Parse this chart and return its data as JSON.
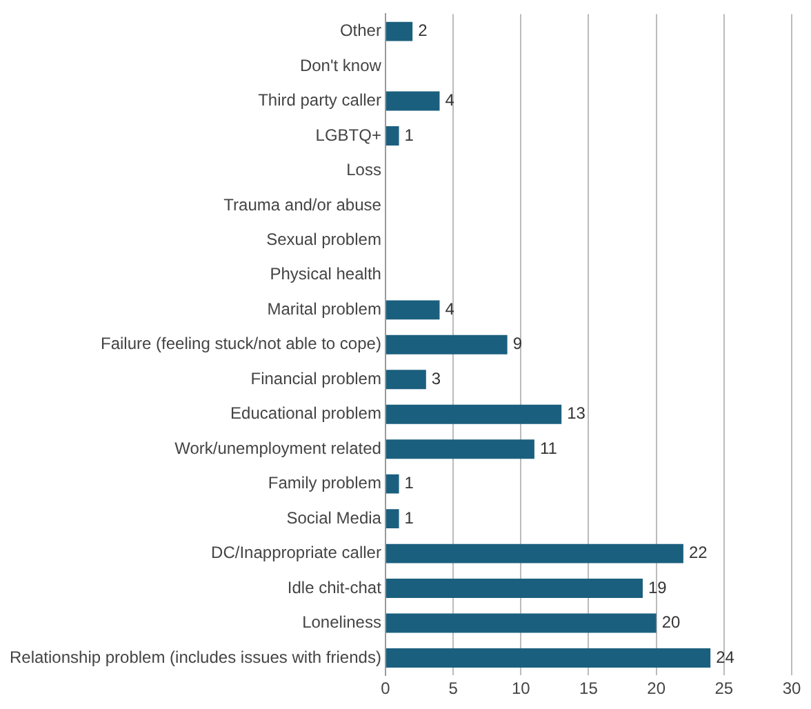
{
  "chart_data": {
    "type": "bar",
    "orientation": "horizontal",
    "categories": [
      "Other",
      "Don't know",
      "Third party caller",
      "LGBTQ+",
      "Loss",
      "Trauma and/or abuse",
      "Sexual problem",
      "Physical health",
      "Marital problem",
      "Failure (feeling stuck/not able to cope)",
      "Financial problem",
      "Educational problem",
      "Work/unemployment related",
      "Family problem",
      "Social Media",
      "DC/Inappropriate caller",
      "Idle chit-chat",
      "Loneliness",
      "Relationship problem (includes issues with friends)"
    ],
    "values": [
      2,
      0,
      4,
      1,
      0,
      0,
      0,
      0,
      4,
      9,
      3,
      13,
      11,
      1,
      1,
      22,
      19,
      20,
      24
    ],
    "value_labels": [
      "2",
      null,
      "4",
      "1",
      null,
      null,
      null,
      null,
      "4",
      "9",
      "3",
      "13",
      "11",
      "1",
      "1",
      "22",
      "19",
      "20",
      "24"
    ],
    "color": "#1b5f7e",
    "xlim": [
      0,
      30
    ],
    "xticks": [
      0,
      5,
      10,
      15,
      20,
      25,
      30
    ],
    "grid": "x",
    "legend": false
  }
}
